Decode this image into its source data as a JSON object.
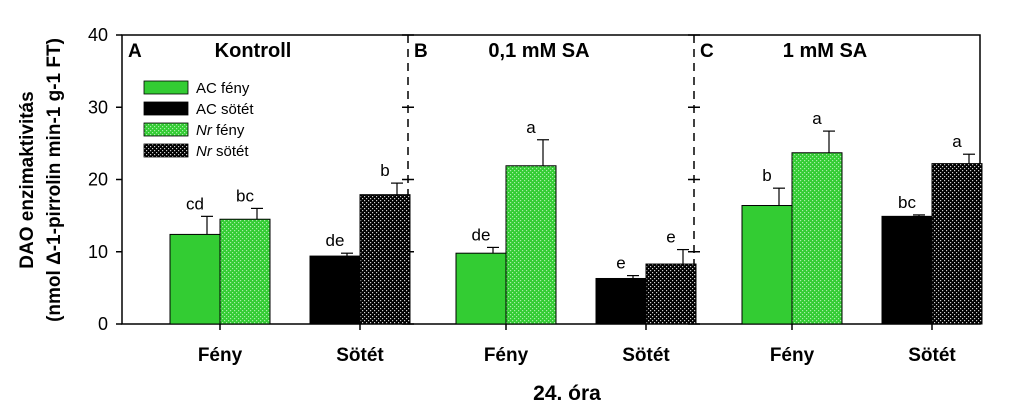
{
  "chart_data": {
    "type": "bar",
    "xlabel": "24. óra",
    "ylabel_line1": "DAO enzimaktivitás",
    "ylabel_line2": "(nmol Δ-1-pirrolin min-1 g-1 FT)",
    "ylim": [
      0,
      40
    ],
    "yticks": [
      0,
      10,
      20,
      30,
      40
    ],
    "grid": false,
    "legend_position": "top-left",
    "panels": [
      {
        "letter": "A",
        "title": "Kontroll"
      },
      {
        "letter": "B",
        "title": "0,1 mM SA"
      },
      {
        "letter": "C",
        "title": "1 mM SA"
      }
    ],
    "categories": [
      "Fény",
      "Sötét"
    ],
    "series": [
      {
        "name": "AC fény",
        "italic_part": "",
        "rest": "AC fény",
        "color": "#33cc33",
        "pattern": "solid"
      },
      {
        "name": "AC sötét",
        "italic_part": "",
        "rest": "AC sötét",
        "color": "#000000",
        "pattern": "solid"
      },
      {
        "name": "Nr fény",
        "italic_part": "Nr",
        "rest": " fény",
        "color": "#33cc33",
        "pattern": "dotted"
      },
      {
        "name": "Nr sötét",
        "italic_part": "Nr",
        "rest": " sötét",
        "color": "#000000",
        "pattern": "dotted"
      }
    ],
    "bars": [
      {
        "panel": 0,
        "group": 0,
        "series": 0,
        "value": 12.4,
        "error": 2.5,
        "sig": "cd"
      },
      {
        "panel": 0,
        "group": 0,
        "series": 2,
        "value": 14.5,
        "error": 1.5,
        "sig": "bc"
      },
      {
        "panel": 0,
        "group": 1,
        "series": 1,
        "value": 9.4,
        "error": 0.4,
        "sig": "de"
      },
      {
        "panel": 0,
        "group": 1,
        "series": 3,
        "value": 17.9,
        "error": 1.6,
        "sig": "b"
      },
      {
        "panel": 1,
        "group": 0,
        "series": 0,
        "value": 9.8,
        "error": 0.8,
        "sig": "de"
      },
      {
        "panel": 1,
        "group": 0,
        "series": 2,
        "value": 21.9,
        "error": 3.6,
        "sig": "a"
      },
      {
        "panel": 1,
        "group": 1,
        "series": 1,
        "value": 6.3,
        "error": 0.4,
        "sig": "e"
      },
      {
        "panel": 1,
        "group": 1,
        "series": 3,
        "value": 8.3,
        "error": 2.0,
        "sig": "e"
      },
      {
        "panel": 2,
        "group": 0,
        "series": 0,
        "value": 16.4,
        "error": 2.4,
        "sig": "b"
      },
      {
        "panel": 2,
        "group": 0,
        "series": 2,
        "value": 23.7,
        "error": 3.0,
        "sig": "a"
      },
      {
        "panel": 2,
        "group": 1,
        "series": 1,
        "value": 14.9,
        "error": 0.2,
        "sig": "bc"
      },
      {
        "panel": 2,
        "group": 1,
        "series": 3,
        "value": 22.2,
        "error": 1.3,
        "sig": "a"
      }
    ]
  }
}
